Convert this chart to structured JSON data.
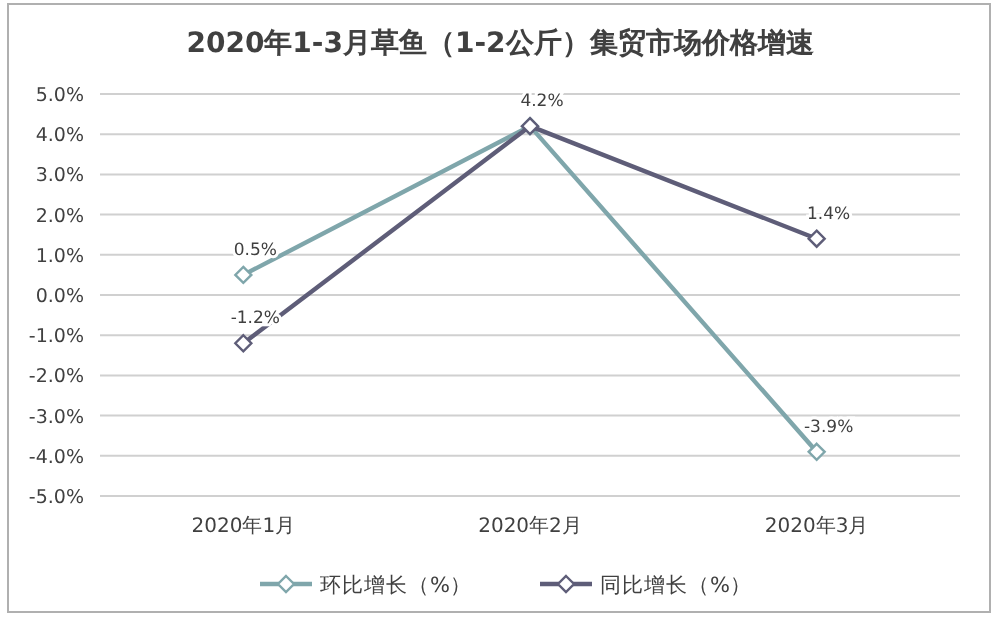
{
  "chart_data": {
    "type": "line",
    "title": "2020年1-3月草鱼（1-2公斤）集贸市场价格增速",
    "categories": [
      "2020年1月",
      "2020年2月",
      "2020年3月"
    ],
    "series": [
      {
        "name": "环比增长（%）",
        "color": "#7fa6ab",
        "values": [
          0.5,
          4.2,
          -3.9
        ],
        "value_labels": [
          "0.5%",
          "4.2%",
          "-3.9%"
        ]
      },
      {
        "name": "同比增长（%）",
        "color": "#5e5d78",
        "values": [
          -1.2,
          4.2,
          1.4
        ],
        "value_labels": [
          "-1.2%",
          null,
          "1.4%"
        ]
      }
    ],
    "ylim": [
      -5,
      5
    ],
    "yticks": [
      {
        "value": 5,
        "label": "5.0%"
      },
      {
        "value": 4,
        "label": "4.0%"
      },
      {
        "value": 3,
        "label": "3.0%"
      },
      {
        "value": 2,
        "label": "2.0%"
      },
      {
        "value": 1,
        "label": "1.0%"
      },
      {
        "value": 0,
        "label": "0.0%"
      },
      {
        "value": -1,
        "label": "-1.0%"
      },
      {
        "value": -2,
        "label": "-2.0%"
      },
      {
        "value": -3,
        "label": "-3.0%"
      },
      {
        "value": -4,
        "label": "-4.0%"
      },
      {
        "value": -5,
        "label": "-5.0%"
      }
    ],
    "grid": "y",
    "legend": "bottom",
    "marker": "diamond",
    "line_style": "solid"
  }
}
